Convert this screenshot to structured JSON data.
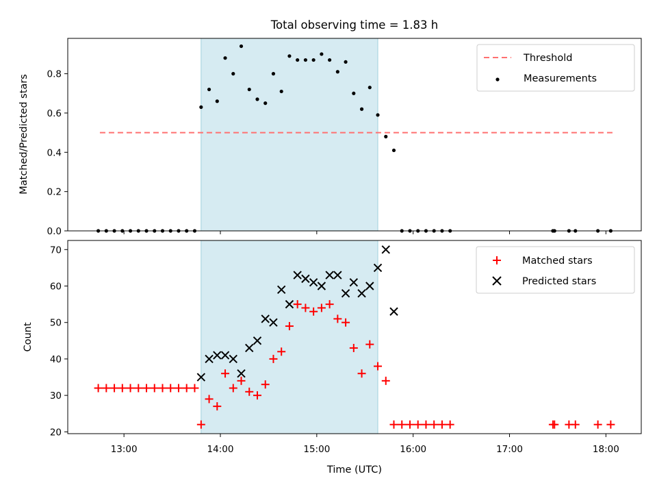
{
  "chart_data": [
    {
      "type": "scatter",
      "title": "Total observing time = 1.83 h",
      "ylabel": "Matched/Predicted stars",
      "ylim": [
        0,
        0.98
      ],
      "yticks": [
        "0.0",
        "0.2",
        "0.4",
        "0.6",
        "0.8"
      ],
      "ytick_values": [
        0.0,
        0.2,
        0.4,
        0.6,
        0.8
      ],
      "shaded_span": [
        "13:48",
        "15:38"
      ],
      "shade_color": "#add8e6",
      "legend_position": "top-right",
      "threshold": {
        "name": "Threshold",
        "value": 0.5,
        "x_range": [
          "12:45",
          "18:05"
        ],
        "color": "#ff7070"
      },
      "series": [
        {
          "name": "Measurements",
          "marker": "dot",
          "color": "#000000",
          "points": [
            [
              "12:44",
              0
            ],
            [
              "12:49",
              0
            ],
            [
              "12:54",
              0
            ],
            [
              "12:59",
              0
            ],
            [
              "13:04",
              0
            ],
            [
              "13:09",
              0
            ],
            [
              "13:14",
              0
            ],
            [
              "13:19",
              0
            ],
            [
              "13:24",
              0
            ],
            [
              "13:29",
              0
            ],
            [
              "13:34",
              0
            ],
            [
              "13:39",
              0
            ],
            [
              "13:44",
              0
            ],
            [
              "13:48",
              0.63
            ],
            [
              "13:53",
              0.72
            ],
            [
              "13:58",
              0.66
            ],
            [
              "14:03",
              0.88
            ],
            [
              "14:08",
              0.8
            ],
            [
              "14:13",
              0.94
            ],
            [
              "14:18",
              0.72
            ],
            [
              "14:23",
              0.67
            ],
            [
              "14:28",
              0.65
            ],
            [
              "14:33",
              0.8
            ],
            [
              "14:38",
              0.71
            ],
            [
              "14:43",
              0.89
            ],
            [
              "14:48",
              0.87
            ],
            [
              "14:53",
              0.87
            ],
            [
              "14:58",
              0.87
            ],
            [
              "15:03",
              0.9
            ],
            [
              "15:08",
              0.87
            ],
            [
              "15:13",
              0.81
            ],
            [
              "15:18",
              0.86
            ],
            [
              "15:23",
              0.7
            ],
            [
              "15:28",
              0.62
            ],
            [
              "15:33",
              0.73
            ],
            [
              "15:38",
              0.59
            ],
            [
              "15:43",
              0.48
            ],
            [
              "15:48",
              0.41
            ],
            [
              "15:53",
              0
            ],
            [
              "15:58",
              0
            ],
            [
              "16:03",
              0
            ],
            [
              "16:08",
              0
            ],
            [
              "16:13",
              0
            ],
            [
              "16:18",
              0
            ],
            [
              "16:23",
              0
            ],
            [
              "17:27",
              0
            ],
            [
              "17:28",
              0
            ],
            [
              "17:37",
              0
            ],
            [
              "17:41",
              0
            ],
            [
              "17:55",
              0
            ],
            [
              "18:03",
              0
            ]
          ]
        }
      ]
    },
    {
      "type": "scatter",
      "xlabel": "Time (UTC)",
      "ylabel": "Count",
      "ylim": [
        19.5,
        72.5
      ],
      "yticks": [
        "20",
        "30",
        "40",
        "50",
        "60",
        "70"
      ],
      "ytick_values": [
        20,
        30,
        40,
        50,
        60,
        70
      ],
      "xticks": [
        "13:00",
        "14:00",
        "15:00",
        "16:00",
        "17:00",
        "18:00"
      ],
      "xlim": [
        "12:25",
        "18:22"
      ],
      "shaded_span": [
        "13:48",
        "15:38"
      ],
      "shade_color": "#add8e6",
      "legend_position": "top-right",
      "series": [
        {
          "name": "Matched stars",
          "marker": "plus",
          "color": "#ff0000",
          "points": [
            [
              "12:44",
              32
            ],
            [
              "12:49",
              32
            ],
            [
              "12:54",
              32
            ],
            [
              "12:59",
              32
            ],
            [
              "13:04",
              32
            ],
            [
              "13:09",
              32
            ],
            [
              "13:14",
              32
            ],
            [
              "13:19",
              32
            ],
            [
              "13:24",
              32
            ],
            [
              "13:29",
              32
            ],
            [
              "13:34",
              32
            ],
            [
              "13:39",
              32
            ],
            [
              "13:44",
              32
            ],
            [
              "13:48",
              22
            ],
            [
              "13:53",
              29
            ],
            [
              "13:58",
              27
            ],
            [
              "14:03",
              36
            ],
            [
              "14:08",
              32
            ],
            [
              "14:13",
              34
            ],
            [
              "14:18",
              31
            ],
            [
              "14:23",
              30
            ],
            [
              "14:28",
              33
            ],
            [
              "14:33",
              40
            ],
            [
              "14:38",
              42
            ],
            [
              "14:43",
              49
            ],
            [
              "14:48",
              55
            ],
            [
              "14:53",
              54
            ],
            [
              "14:58",
              53
            ],
            [
              "15:03",
              54
            ],
            [
              "15:08",
              55
            ],
            [
              "15:13",
              51
            ],
            [
              "15:18",
              50
            ],
            [
              "15:23",
              43
            ],
            [
              "15:28",
              36
            ],
            [
              "15:33",
              44
            ],
            [
              "15:38",
              38
            ],
            [
              "15:43",
              34
            ],
            [
              "15:48",
              22
            ],
            [
              "15:53",
              22
            ],
            [
              "15:58",
              22
            ],
            [
              "16:03",
              22
            ],
            [
              "16:08",
              22
            ],
            [
              "16:13",
              22
            ],
            [
              "16:18",
              22
            ],
            [
              "16:23",
              22
            ],
            [
              "17:27",
              22
            ],
            [
              "17:28",
              22
            ],
            [
              "17:37",
              22
            ],
            [
              "17:41",
              22
            ],
            [
              "17:55",
              22
            ],
            [
              "18:03",
              22
            ]
          ]
        },
        {
          "name": "Predicted stars",
          "marker": "x",
          "color": "#000000",
          "points": [
            [
              "13:48",
              35
            ],
            [
              "13:53",
              40
            ],
            [
              "13:58",
              41
            ],
            [
              "14:03",
              41
            ],
            [
              "14:08",
              40
            ],
            [
              "14:13",
              36
            ],
            [
              "14:18",
              43
            ],
            [
              "14:23",
              45
            ],
            [
              "14:28",
              51
            ],
            [
              "14:33",
              50
            ],
            [
              "14:38",
              59
            ],
            [
              "14:43",
              55
            ],
            [
              "14:48",
              63
            ],
            [
              "14:53",
              62
            ],
            [
              "14:58",
              61
            ],
            [
              "15:03",
              60
            ],
            [
              "15:08",
              63
            ],
            [
              "15:13",
              63
            ],
            [
              "15:18",
              58
            ],
            [
              "15:23",
              61
            ],
            [
              "15:28",
              58
            ],
            [
              "15:33",
              60
            ],
            [
              "15:38",
              65
            ],
            [
              "15:43",
              70
            ],
            [
              "15:48",
              53
            ]
          ]
        }
      ]
    }
  ]
}
